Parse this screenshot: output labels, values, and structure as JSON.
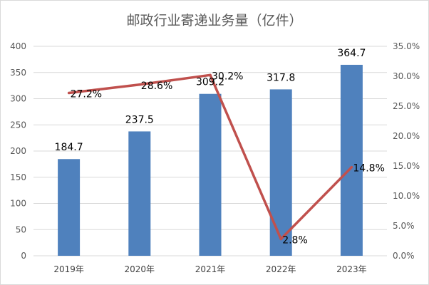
{
  "chart_data": {
    "type": "bar",
    "title": "邮政行业寄递业务量（亿件）",
    "categories": [
      "2019年",
      "2020年",
      "2021年",
      "2022年",
      "2023年"
    ],
    "series": [
      {
        "type": "bar",
        "values": [
          184.7,
          237.5,
          309.2,
          317.8,
          364.7
        ],
        "value_labels": [
          "184.7",
          "237.5",
          "309.2",
          "317.8",
          "364.7"
        ],
        "color": "#4f81bd",
        "axis": "left"
      },
      {
        "type": "line",
        "values": [
          27.2,
          28.6,
          30.2,
          2.8,
          14.8
        ],
        "value_labels": [
          "27.2%",
          "28.6%",
          "30.2%",
          "2.8%",
          "14.8%"
        ],
        "color": "#c0504d",
        "axis": "right"
      }
    ],
    "y_left": {
      "ylim": [
        0,
        400
      ],
      "ticks": [
        "0",
        "50",
        "100",
        "150",
        "200",
        "250",
        "300",
        "350",
        "400"
      ]
    },
    "y_right": {
      "ylim": [
        0,
        35
      ],
      "ticks": [
        "0.0%",
        "5.0%",
        "10.0%",
        "15.0%",
        "20.0%",
        "25.0%",
        "30.0%",
        "35.0%"
      ]
    },
    "grid": true,
    "legend": "none"
  }
}
